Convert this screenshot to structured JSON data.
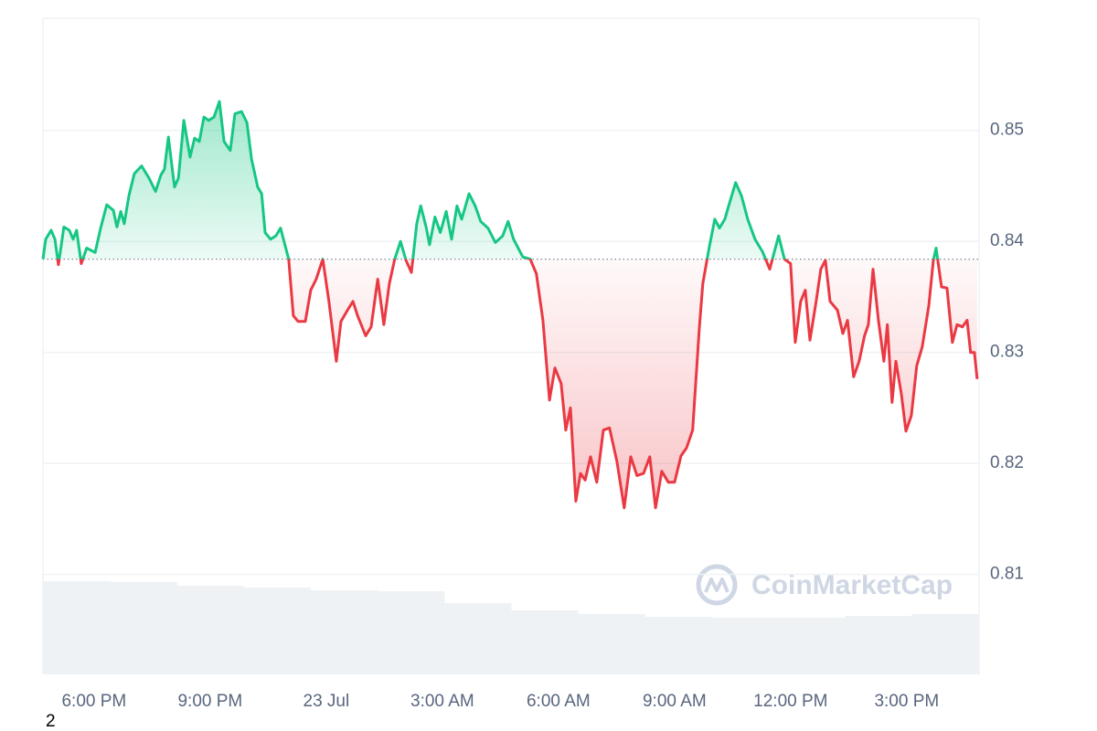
{
  "chart_data": {
    "type": "line",
    "baseline": 0.8384,
    "up_color": "#16c784",
    "down_color": "#ea3943",
    "watermark": "CoinMarketCap",
    "footnote": "2",
    "xlim": [
      16.68,
      40.87
    ],
    "ylim": [
      0.801,
      0.8601
    ],
    "xticks": [
      {
        "value": 18,
        "label": "6:00 PM"
      },
      {
        "value": 21,
        "label": "9:00 PM"
      },
      {
        "value": 24,
        "label": "23 Jul"
      },
      {
        "value": 27,
        "label": "3:00 AM"
      },
      {
        "value": 30,
        "label": "6:00 AM"
      },
      {
        "value": 33,
        "label": "9:00 AM"
      },
      {
        "value": 36,
        "label": "12:00 PM"
      },
      {
        "value": 39,
        "label": "3:00 PM"
      }
    ],
    "yticks": [
      0.81,
      0.82,
      0.83,
      0.84,
      0.85
    ],
    "grid": true,
    "x": [
      16.68,
      16.75,
      16.89,
      16.99,
      17.08,
      17.22,
      17.36,
      17.46,
      17.55,
      17.67,
      17.81,
      18.03,
      18.17,
      18.33,
      18.5,
      18.59,
      18.69,
      18.78,
      18.9,
      19.04,
      19.23,
      19.42,
      19.59,
      19.73,
      19.82,
      19.92,
      20.08,
      20.18,
      20.32,
      20.48,
      20.6,
      20.72,
      20.84,
      20.96,
      21.1,
      21.24,
      21.36,
      21.52,
      21.64,
      21.81,
      21.95,
      22.07,
      22.23,
      22.33,
      22.42,
      22.56,
      22.7,
      22.82,
      23.03,
      23.15,
      23.27,
      23.46,
      23.6,
      23.74,
      23.91,
      24.07,
      24.26,
      24.38,
      24.55,
      24.69,
      24.81,
      25.02,
      25.16,
      25.33,
      25.49,
      25.63,
      25.77,
      25.92,
      26.06,
      26.2,
      26.34,
      26.44,
      26.58,
      26.67,
      26.81,
      26.95,
      27.1,
      27.24,
      27.38,
      27.5,
      27.69,
      27.85,
      27.99,
      28.18,
      28.37,
      28.56,
      28.7,
      28.84,
      29.08,
      29.27,
      29.43,
      29.6,
      29.77,
      29.91,
      30.07,
      30.19,
      30.31,
      30.45,
      30.57,
      30.69,
      30.83,
      30.99,
      31.16,
      31.32,
      31.51,
      31.7,
      31.87,
      32.03,
      32.2,
      32.36,
      32.51,
      32.67,
      32.84,
      33.0,
      33.17,
      33.31,
      33.47,
      33.64,
      33.73,
      33.9,
      34.04,
      34.16,
      34.3,
      34.4,
      34.58,
      34.73,
      34.89,
      35.08,
      35.27,
      35.46,
      35.69,
      35.84,
      36.0,
      36.12,
      36.26,
      36.38,
      36.5,
      36.66,
      36.78,
      36.9,
      37.02,
      37.21,
      37.35,
      37.47,
      37.63,
      37.77,
      37.91,
      38.01,
      38.13,
      38.27,
      38.41,
      38.5,
      38.62,
      38.72,
      38.86,
      38.98,
      39.12,
      39.26,
      39.4,
      39.57,
      39.69,
      39.76,
      39.9,
      40.04,
      40.18,
      40.3,
      40.44,
      40.56,
      40.65,
      40.75,
      40.82
    ],
    "values": [
      0.8384,
      0.8402,
      0.841,
      0.8402,
      0.8379,
      0.8413,
      0.841,
      0.8402,
      0.841,
      0.838,
      0.8394,
      0.839,
      0.8412,
      0.8433,
      0.8428,
      0.8413,
      0.8427,
      0.8416,
      0.8441,
      0.8461,
      0.8468,
      0.8457,
      0.8445,
      0.846,
      0.8465,
      0.8494,
      0.8449,
      0.8457,
      0.8509,
      0.8476,
      0.8493,
      0.849,
      0.8512,
      0.8509,
      0.8512,
      0.8526,
      0.849,
      0.8482,
      0.8515,
      0.8517,
      0.8507,
      0.8474,
      0.8449,
      0.8443,
      0.8408,
      0.8402,
      0.8405,
      0.8412,
      0.8384,
      0.8333,
      0.8328,
      0.8328,
      0.8356,
      0.8366,
      0.8384,
      0.8346,
      0.8292,
      0.8328,
      0.8338,
      0.8346,
      0.8333,
      0.8315,
      0.8323,
      0.8366,
      0.8325,
      0.8362,
      0.8384,
      0.84,
      0.8383,
      0.8372,
      0.8416,
      0.8432,
      0.8413,
      0.8397,
      0.8422,
      0.8408,
      0.8427,
      0.8402,
      0.8432,
      0.842,
      0.8443,
      0.8432,
      0.8418,
      0.8412,
      0.8399,
      0.8405,
      0.8418,
      0.8402,
      0.8386,
      0.8384,
      0.8371,
      0.8329,
      0.8257,
      0.8286,
      0.8272,
      0.823,
      0.825,
      0.8166,
      0.8191,
      0.8185,
      0.8206,
      0.8183,
      0.823,
      0.8232,
      0.8202,
      0.816,
      0.8206,
      0.8189,
      0.8191,
      0.8206,
      0.816,
      0.8193,
      0.8183,
      0.8183,
      0.8207,
      0.8214,
      0.823,
      0.8321,
      0.8362,
      0.8395,
      0.842,
      0.8412,
      0.842,
      0.8432,
      0.8453,
      0.8441,
      0.842,
      0.8402,
      0.8391,
      0.8375,
      0.8405,
      0.8384,
      0.838,
      0.8309,
      0.8346,
      0.8356,
      0.8311,
      0.8346,
      0.8375,
      0.8383,
      0.8346,
      0.8338,
      0.8317,
      0.8329,
      0.8278,
      0.8292,
      0.8315,
      0.8325,
      0.8375,
      0.8329,
      0.8292,
      0.8325,
      0.8255,
      0.8292,
      0.8263,
      0.8229,
      0.8243,
      0.8288,
      0.8305,
      0.8342,
      0.8383,
      0.8394,
      0.8359,
      0.8358,
      0.8309,
      0.8325,
      0.8323,
      0.8329,
      0.83,
      0.83,
      0.8276
    ],
    "volume": {
      "color": "#eff2f5",
      "values": [
        102,
        101,
        97,
        95,
        92,
        91,
        78,
        70,
        66,
        63,
        62,
        62,
        64,
        66
      ]
    }
  }
}
